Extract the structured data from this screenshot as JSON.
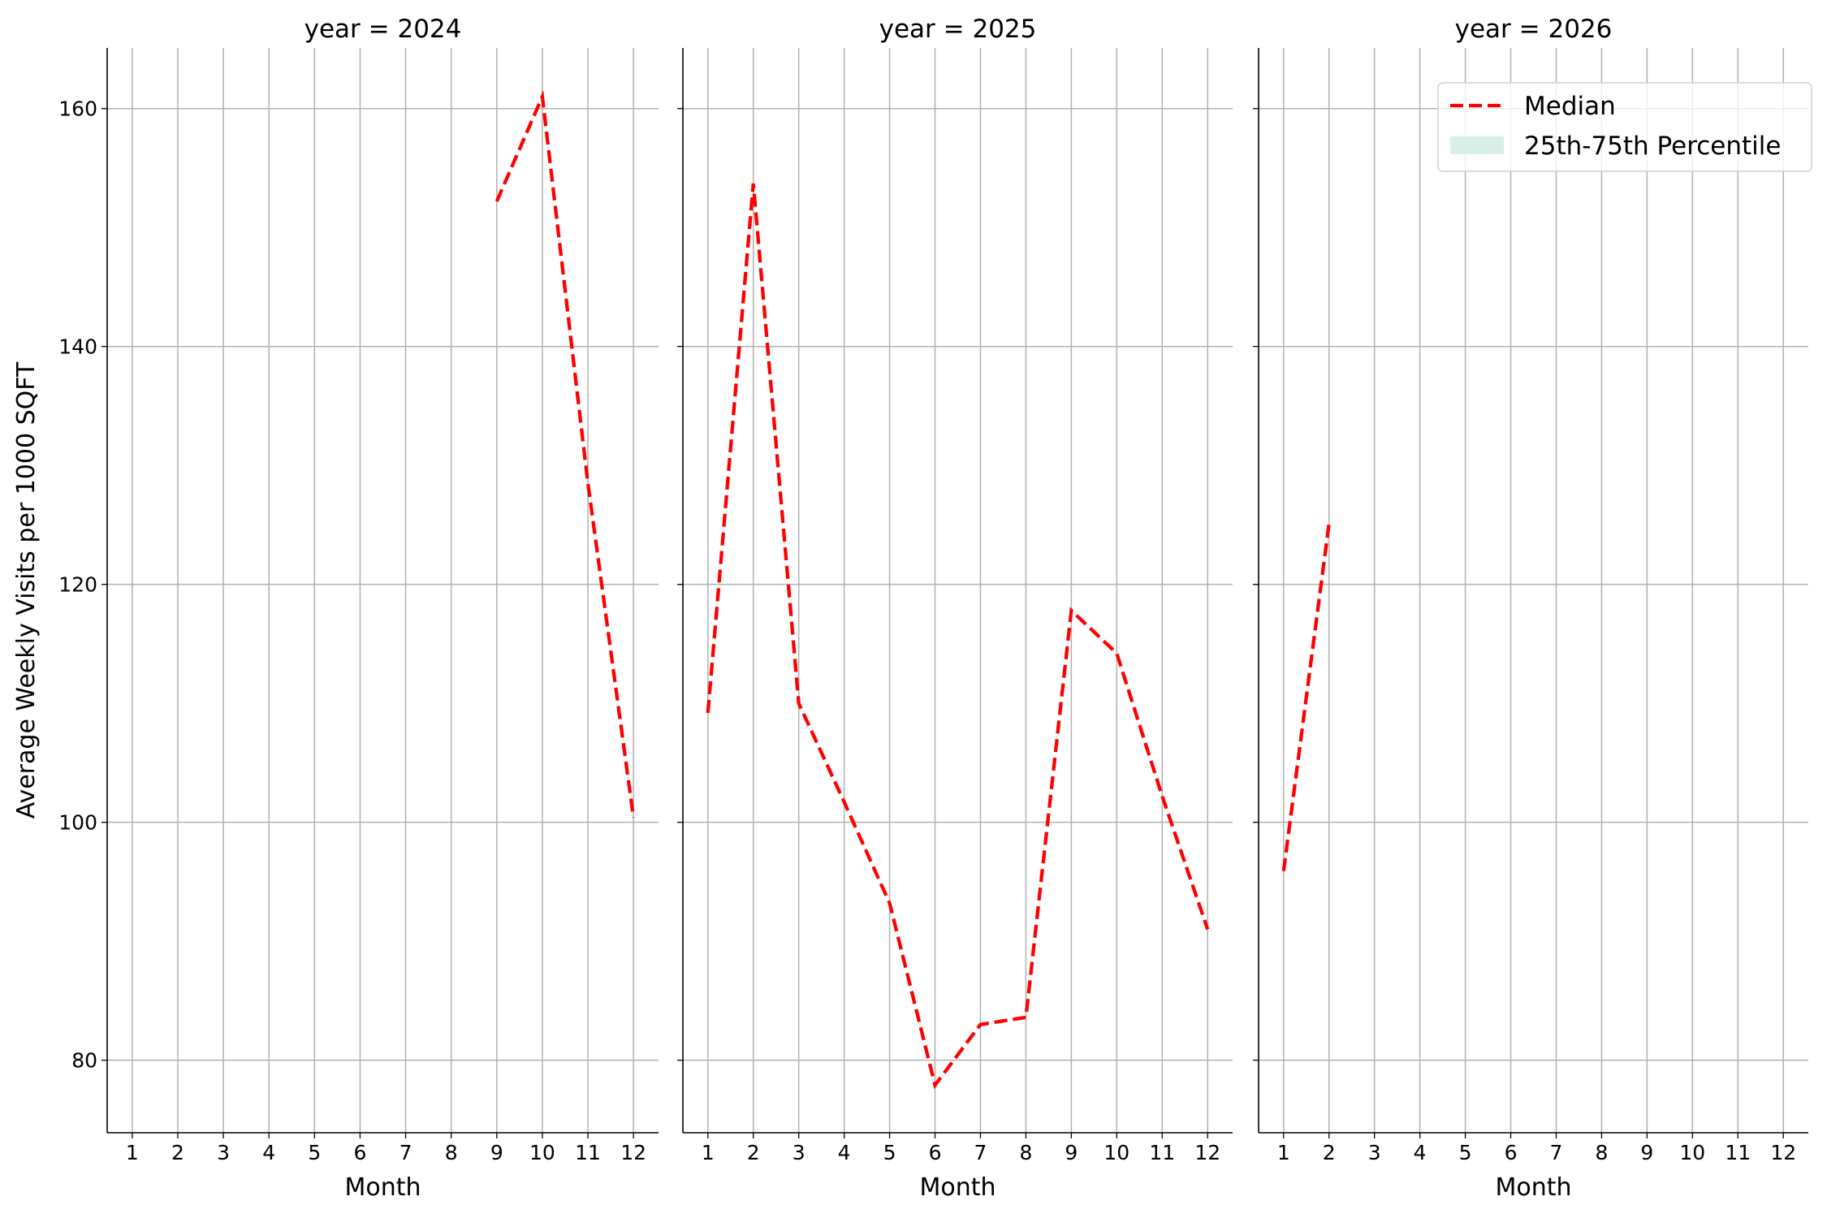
{
  "chart_data": {
    "type": "line",
    "ylabel": "Average Weekly Visits per 1000 SQFT",
    "ylim": [
      73.9,
      165.1
    ],
    "yticks": [
      80,
      100,
      120,
      140,
      160
    ],
    "xlim": [
      0.45,
      12.55
    ],
    "xticks": [
      1,
      2,
      3,
      4,
      5,
      6,
      7,
      8,
      9,
      10,
      11,
      12
    ],
    "grid": true,
    "legend": {
      "placement": "top-right",
      "entries": [
        {
          "label": "Median",
          "color": "#ff0000",
          "style": "dashed"
        },
        {
          "label": "25th-75th Percentile",
          "color": "#d8eee9",
          "style": "patch"
        }
      ]
    },
    "panels": [
      {
        "title": "year = 2024",
        "xlabel": "Month",
        "series": [
          {
            "name": "Median",
            "x": [
              9,
              10,
              11,
              12
            ],
            "y": [
              152.2,
              161.0,
              128.5,
              100.4
            ]
          }
        ]
      },
      {
        "title": "year = 2025",
        "xlabel": "Month",
        "series": [
          {
            "name": "Median",
            "x": [
              1,
              2,
              3,
              4,
              5,
              6,
              7,
              8,
              9,
              10,
              11,
              12
            ],
            "y": [
              109.2,
              153.7,
              110.0,
              101.7,
              93.2,
              77.9,
              83.0,
              83.6,
              117.8,
              114.2,
              102.2,
              91.0
            ]
          }
        ]
      },
      {
        "title": "year = 2026",
        "xlabel": "Month",
        "series": [
          {
            "name": "Median",
            "x": [
              1,
              2
            ],
            "y": [
              95.9,
              125.1
            ]
          }
        ]
      }
    ]
  }
}
